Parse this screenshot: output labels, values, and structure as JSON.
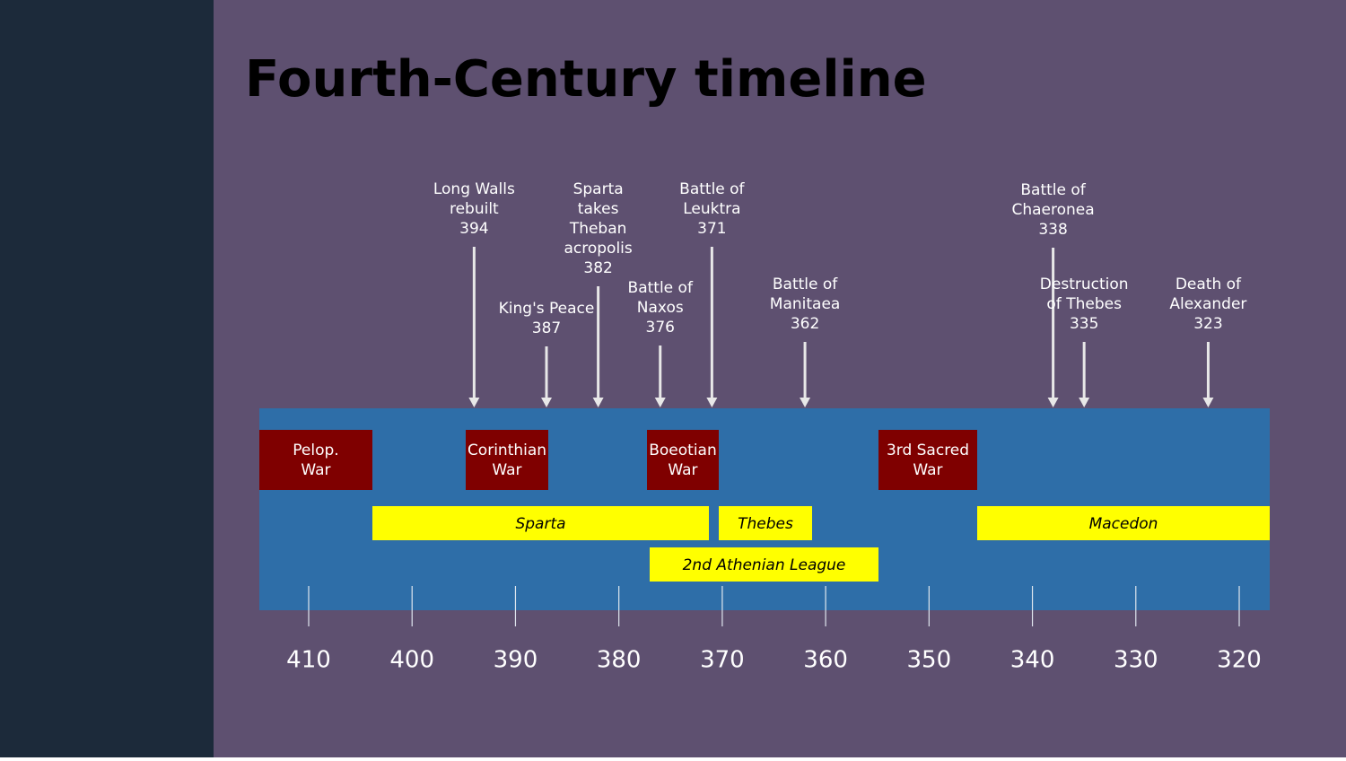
{
  "title": "Fourth-Century timeline",
  "events": [
    {
      "label": [
        "Long Walls",
        "rebuilt"
      ],
      "year": 394
    },
    {
      "label": [
        "King's Peace"
      ],
      "year": 387
    },
    {
      "label": [
        "Sparta",
        "takes",
        "Theban",
        "acropolis"
      ],
      "year": 382
    },
    {
      "label": [
        "Battle of",
        "Naxos"
      ],
      "year": 376
    },
    {
      "label": [
        "Battle of",
        "Leuktra"
      ],
      "year": 371
    },
    {
      "label": [
        "Battle of",
        "Manitaea"
      ],
      "year": 362
    },
    {
      "label": [
        "Battle of",
        "Chaeronea"
      ],
      "year": 338
    },
    {
      "label": [
        "Destruction",
        "of Thebes"
      ],
      "year": 335
    },
    {
      "label": [
        "Death of",
        "Alexander"
      ],
      "year": 323
    }
  ],
  "wars": [
    [
      "Pelop.",
      "War"
    ],
    [
      "Corinthian",
      "War"
    ],
    [
      "Boeotian",
      "War"
    ],
    [
      "3rd Sacred",
      "War"
    ]
  ],
  "periods": [
    "Sparta",
    "Thebes",
    "Macedon",
    "2nd Athenian League"
  ],
  "ticks": [
    410,
    400,
    390,
    380,
    370,
    360,
    350,
    340,
    330,
    320
  ]
}
